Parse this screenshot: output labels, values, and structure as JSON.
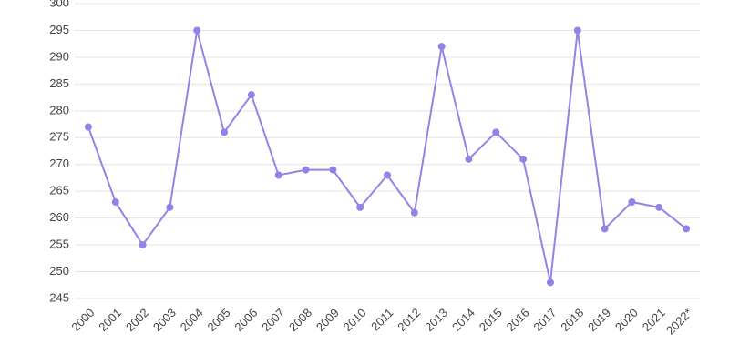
{
  "chart_data": {
    "type": "line",
    "categories": [
      "2000",
      "2001",
      "2002",
      "2003",
      "2004",
      "2005",
      "2006",
      "2007",
      "2008",
      "2009",
      "2010",
      "2011",
      "2012",
      "2013",
      "2014",
      "2015",
      "2016",
      "2017",
      "2018",
      "2019",
      "2020",
      "2021",
      "2022*"
    ],
    "values": [
      277,
      263,
      255,
      262,
      295,
      276,
      283,
      268,
      269,
      269,
      262,
      268,
      261,
      292,
      271,
      276,
      271,
      248,
      295,
      258,
      263,
      262,
      258
    ],
    "color": "#9483e6",
    "ylim": [
      245,
      300
    ],
    "yticks": [
      245,
      250,
      255,
      260,
      265,
      270,
      275,
      280,
      285,
      290,
      295,
      300
    ],
    "grid": true
  }
}
